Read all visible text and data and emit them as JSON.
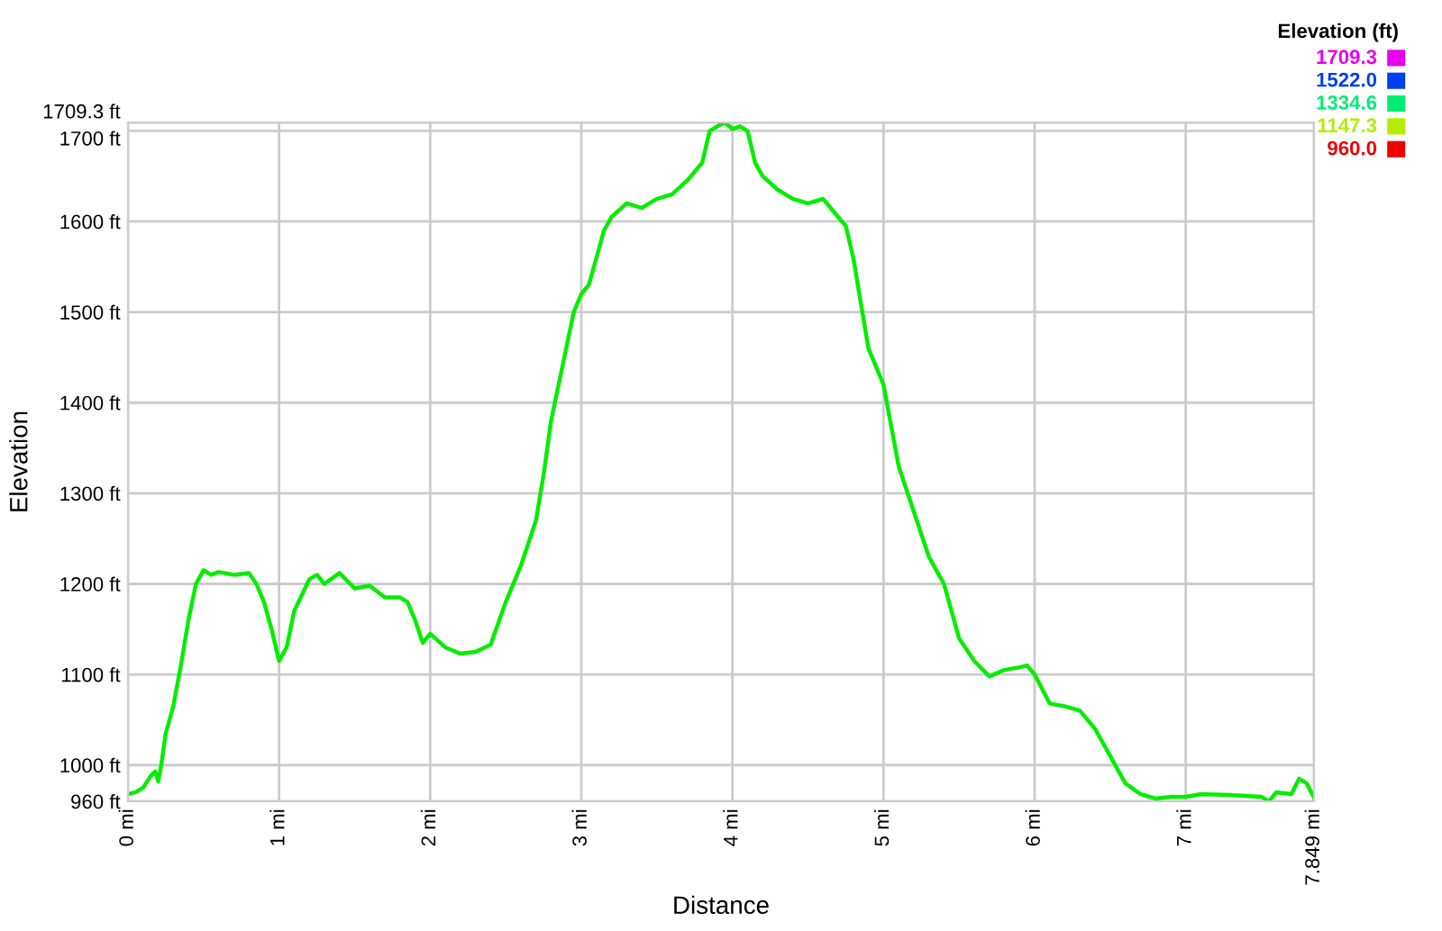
{
  "chart_data": {
    "type": "line",
    "xlabel": "Distance",
    "ylabel": "Elevation",
    "clabel": "Elevation (ft)",
    "clim": [
      960.0,
      1709.3
    ],
    "cticks": [
      {
        "value": 1709.3,
        "label": "1709.3"
      },
      {
        "value": 1522.0,
        "label": "1522.0"
      },
      {
        "value": 1334.6,
        "label": "1334.6"
      },
      {
        "value": 1147.3,
        "label": "1147.3"
      },
      {
        "value": 960.0,
        "label": "960.0"
      }
    ],
    "xlim": [
      0,
      7.849
    ],
    "ylim": [
      960,
      1709.3
    ],
    "xticks": [
      {
        "value": 0,
        "label": "0 mi"
      },
      {
        "value": 1,
        "label": "1 mi"
      },
      {
        "value": 2,
        "label": "2 mi"
      },
      {
        "value": 3,
        "label": "3 mi"
      },
      {
        "value": 4,
        "label": "4 mi"
      },
      {
        "value": 5,
        "label": "5 mi"
      },
      {
        "value": 6,
        "label": "6 mi"
      },
      {
        "value": 7,
        "label": "7 mi"
      },
      {
        "value": 7.849,
        "label": "7.849 mi"
      }
    ],
    "yticks": [
      {
        "value": 960,
        "label": "960 ft"
      },
      {
        "value": 1000,
        "label": "1000 ft"
      },
      {
        "value": 1100,
        "label": "1100 ft"
      },
      {
        "value": 1200,
        "label": "1200 ft"
      },
      {
        "value": 1300,
        "label": "1300 ft"
      },
      {
        "value": 1400,
        "label": "1400 ft"
      },
      {
        "value": 1500,
        "label": "1500 ft"
      },
      {
        "value": 1600,
        "label": "1600 ft"
      },
      {
        "value": 1700,
        "label": "1700 ft"
      },
      {
        "value": 1709.3,
        "label": "1709.3 ft"
      }
    ],
    "grid": true,
    "x": [
      0,
      0.05,
      0.1,
      0.15,
      0.18,
      0.2,
      0.22,
      0.25,
      0.3,
      0.35,
      0.4,
      0.45,
      0.5,
      0.55,
      0.6,
      0.7,
      0.8,
      0.85,
      0.9,
      0.95,
      1.0,
      1.05,
      1.1,
      1.2,
      1.25,
      1.3,
      1.4,
      1.5,
      1.6,
      1.7,
      1.8,
      1.85,
      1.9,
      1.95,
      2.0,
      2.1,
      2.2,
      2.3,
      2.4,
      2.5,
      2.6,
      2.7,
      2.75,
      2.8,
      2.85,
      2.9,
      2.95,
      3.0,
      3.05,
      3.1,
      3.15,
      3.2,
      3.3,
      3.4,
      3.5,
      3.6,
      3.7,
      3.8,
      3.85,
      3.9,
      3.95,
      4.0,
      4.05,
      4.1,
      4.15,
      4.2,
      4.3,
      4.4,
      4.5,
      4.6,
      4.7,
      4.75,
      4.8,
      4.85,
      4.9,
      5.0,
      5.1,
      5.2,
      5.3,
      5.4,
      5.5,
      5.6,
      5.7,
      5.8,
      5.9,
      5.95,
      6.0,
      6.1,
      6.2,
      6.3,
      6.4,
      6.5,
      6.6,
      6.7,
      6.8,
      6.9,
      7.0,
      7.1,
      7.3,
      7.5,
      7.55,
      7.6,
      7.7,
      7.75,
      7.8,
      7.849
    ],
    "values": [
      968,
      970,
      975,
      988,
      993,
      982,
      1000,
      1035,
      1065,
      1110,
      1160,
      1200,
      1215,
      1210,
      1213,
      1210,
      1212,
      1200,
      1180,
      1150,
      1115,
      1130,
      1170,
      1205,
      1210,
      1200,
      1212,
      1195,
      1198,
      1185,
      1185,
      1180,
      1160,
      1135,
      1145,
      1130,
      1123,
      1125,
      1133,
      1180,
      1220,
      1270,
      1320,
      1380,
      1420,
      1460,
      1500,
      1520,
      1530,
      1560,
      1590,
      1605,
      1620,
      1615,
      1625,
      1630,
      1645,
      1665,
      1700,
      1705,
      1709.3,
      1702,
      1705,
      1700,
      1665,
      1650,
      1635,
      1625,
      1620,
      1625,
      1605,
      1595,
      1560,
      1510,
      1460,
      1420,
      1330,
      1280,
      1230,
      1200,
      1140,
      1115,
      1098,
      1105,
      1108,
      1110,
      1100,
      1068,
      1065,
      1060,
      1040,
      1010,
      980,
      968,
      963,
      965,
      965,
      968,
      967,
      965,
      960,
      970,
      968,
      985,
      980,
      964
    ]
  }
}
